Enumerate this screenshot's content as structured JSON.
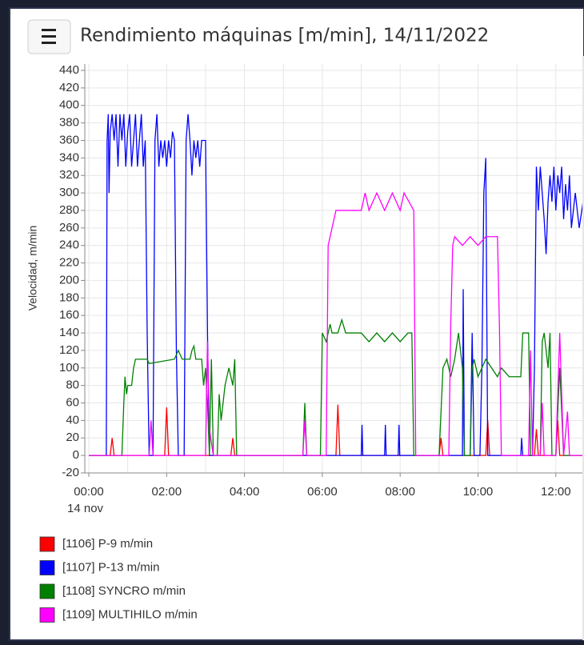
{
  "chart_data": {
    "type": "line",
    "title": "Rendimiento máquinas [m/min], 14/11/2022",
    "ylabel": "Velocidad, m/min",
    "date_label": "14 nov",
    "xlim": [
      -0.1,
      12.7
    ],
    "ylim": [
      -20,
      440
    ],
    "yticks": [
      -20,
      0,
      20,
      40,
      60,
      80,
      100,
      120,
      140,
      160,
      180,
      200,
      220,
      240,
      260,
      280,
      300,
      320,
      340,
      360,
      380,
      400,
      420,
      440
    ],
    "xticks": [
      {
        "value": 0,
        "label": "00:00"
      },
      {
        "value": 2,
        "label": "02:00"
      },
      {
        "value": 4,
        "label": "04:00"
      },
      {
        "value": 6,
        "label": "06:00"
      },
      {
        "value": 8,
        "label": "08:00"
      },
      {
        "value": 10,
        "label": "10:00"
      },
      {
        "value": 12,
        "label": "12:00"
      }
    ],
    "xminor": [
      1,
      3,
      5,
      7,
      9,
      11
    ],
    "grid": true,
    "series": [
      {
        "name": "[1106] P-9 m/min",
        "color": "#ff0000",
        "x": [
          0,
          0.55,
          0.6,
          0.65,
          1.95,
          2.0,
          2.05,
          3.65,
          3.7,
          3.75,
          6.35,
          6.4,
          6.45,
          9.0,
          9.05,
          9.1,
          10.2,
          10.25,
          10.3,
          11.45,
          11.5,
          11.55,
          12.0,
          12.05,
          12.1,
          12.7
        ],
        "values": [
          0,
          0,
          20,
          0,
          0,
          55,
          0,
          0,
          20,
          0,
          0,
          58,
          0,
          0,
          20,
          0,
          0,
          40,
          0,
          0,
          30,
          0,
          0,
          40,
          0,
          0
        ]
      },
      {
        "name": "[1107] P-13 m/min",
        "color": "#0000ff",
        "x": [
          0,
          0.45,
          0.47,
          0.5,
          0.52,
          0.55,
          0.6,
          0.65,
          0.7,
          0.75,
          0.8,
          0.85,
          0.9,
          0.95,
          1.0,
          1.05,
          1.1,
          1.15,
          1.2,
          1.25,
          1.3,
          1.35,
          1.4,
          1.45,
          1.5,
          1.55,
          1.65,
          1.7,
          1.75,
          1.8,
          1.85,
          1.9,
          1.95,
          2.0,
          2.05,
          2.1,
          2.15,
          2.2,
          2.25,
          2.3,
          2.45,
          2.5,
          2.55,
          2.6,
          2.65,
          2.7,
          2.75,
          2.8,
          2.85,
          2.9,
          3.0,
          3.05,
          3.1,
          7.0,
          7.02,
          7.04,
          7.6,
          7.62,
          7.64,
          7.95,
          7.97,
          7.99,
          9.6,
          9.62,
          9.65,
          9.8,
          9.85,
          9.9,
          10.05,
          10.1,
          10.15,
          10.2,
          10.25,
          11.1,
          11.12,
          11.15,
          11.4,
          11.45,
          11.5,
          11.55,
          11.6,
          11.65,
          11.7,
          11.75,
          11.8,
          11.85,
          11.9,
          11.95,
          12.0,
          12.05,
          12.1,
          12.15,
          12.2,
          12.25,
          12.3,
          12.35,
          12.4,
          12.5,
          12.6,
          12.7
        ],
        "values": [
          0,
          0,
          360,
          390,
          300,
          370,
          390,
          360,
          390,
          330,
          390,
          360,
          390,
          330,
          370,
          390,
          330,
          360,
          390,
          330,
          360,
          390,
          330,
          360,
          140,
          0,
          0,
          360,
          390,
          330,
          360,
          340,
          360,
          330,
          360,
          340,
          370,
          360,
          120,
          0,
          0,
          360,
          390,
          360,
          320,
          360,
          340,
          360,
          330,
          360,
          360,
          140,
          0,
          0,
          35,
          0,
          0,
          35,
          0,
          0,
          35,
          0,
          0,
          190,
          0,
          0,
          140,
          0,
          0,
          100,
          300,
          340,
          0,
          0,
          20,
          0,
          0,
          100,
          330,
          280,
          330,
          300,
          270,
          230,
          290,
          320,
          290,
          330,
          280,
          320,
          300,
          330,
          270,
          310,
          280,
          320,
          260,
          300,
          260,
          290
        ]
      },
      {
        "name": "[1108] SYNCRO m/min",
        "color": "#008000",
        "x": [
          0,
          0.85,
          0.9,
          0.93,
          0.97,
          1.0,
          1.1,
          1.15,
          1.2,
          1.5,
          1.55,
          2.2,
          2.3,
          2.4,
          2.6,
          2.65,
          2.7,
          2.75,
          2.9,
          2.95,
          3.0,
          3.05,
          3.1,
          3.15,
          3.2,
          3.3,
          3.35,
          3.4,
          3.5,
          3.6,
          3.7,
          3.75,
          3.8,
          5.5,
          5.55,
          5.6,
          5.95,
          6.0,
          6.1,
          6.2,
          6.25,
          6.4,
          6.5,
          6.6,
          7.0,
          7.2,
          7.4,
          7.6,
          7.8,
          8.0,
          8.2,
          8.3,
          8.35,
          9.0,
          9.05,
          9.1,
          9.2,
          9.3,
          9.4,
          9.5,
          9.6,
          9.65,
          9.8,
          9.85,
          9.9,
          10.0,
          10.2,
          10.5,
          10.6,
          10.8,
          11.1,
          11.15,
          11.3,
          11.35,
          11.6,
          11.65,
          11.7,
          11.8,
          11.85,
          11.9,
          12.0,
          12.1,
          12.2,
          12.7
        ],
        "values": [
          0,
          0,
          60,
          90,
          70,
          80,
          80,
          100,
          110,
          110,
          105,
          110,
          120,
          110,
          110,
          120,
          125,
          110,
          110,
          80,
          100,
          60,
          0,
          110,
          0,
          0,
          70,
          40,
          80,
          100,
          80,
          110,
          0,
          0,
          60,
          0,
          0,
          140,
          130,
          150,
          140,
          140,
          155,
          140,
          140,
          130,
          140,
          130,
          140,
          130,
          140,
          140,
          0,
          0,
          50,
          100,
          110,
          90,
          110,
          140,
          100,
          0,
          0,
          100,
          110,
          90,
          110,
          90,
          100,
          90,
          90,
          140,
          140,
          0,
          0,
          130,
          140,
          100,
          140,
          0,
          0,
          100,
          0,
          0
        ]
      },
      {
        "name": "[1109] MULTIHILO m/min",
        "color": "#ff00ff",
        "x": [
          0,
          1.55,
          1.6,
          1.65,
          3.0,
          3.05,
          3.1,
          3.2,
          5.5,
          5.55,
          5.6,
          6.1,
          6.15,
          6.25,
          6.35,
          7.0,
          7.1,
          7.2,
          7.4,
          7.6,
          7.8,
          8.0,
          8.1,
          8.35,
          8.4,
          9.25,
          9.3,
          9.35,
          9.4,
          9.6,
          9.8,
          10.0,
          10.2,
          10.5,
          10.55,
          10.6,
          11.3,
          11.35,
          11.4,
          11.6,
          11.65,
          11.7,
          12.0,
          12.1,
          12.2,
          12.3,
          12.35,
          12.7
        ],
        "values": [
          0,
          0,
          40,
          0,
          0,
          130,
          30,
          0,
          0,
          40,
          0,
          0,
          240,
          260,
          280,
          280,
          300,
          280,
          300,
          280,
          300,
          280,
          300,
          280,
          0,
          0,
          150,
          240,
          250,
          240,
          250,
          240,
          250,
          250,
          150,
          0,
          0,
          120,
          0,
          0,
          60,
          0,
          0,
          140,
          0,
          50,
          0,
          0
        ]
      }
    ]
  }
}
